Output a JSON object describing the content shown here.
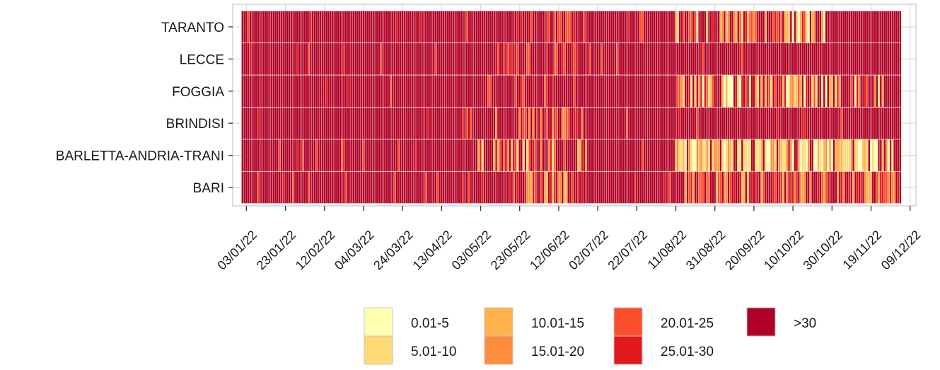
{
  "chart_data": {
    "type": "heatmap",
    "title": "",
    "xlabel": "",
    "ylabel": "",
    "x_start": "01/01/22",
    "x_end": "04/12/22",
    "xlim": [
      "27/12/21",
      "12/12/22"
    ],
    "x_tick_labels": [
      "03/01/22",
      "23/01/22",
      "12/02/22",
      "04/03/22",
      "24/03/22",
      "13/04/22",
      "03/05/22",
      "23/05/22",
      "12/06/22",
      "02/07/22",
      "22/07/22",
      "11/08/22",
      "31/08/22",
      "20/09/22",
      "10/10/22",
      "30/10/22",
      "19/11/22",
      "09/12/22"
    ],
    "rows": [
      "TARANTO",
      "LECCE",
      "FOGGIA",
      "BRINDISI",
      "BARLETTA-ANDRIA-TRANI",
      "BARI"
    ],
    "legend": {
      "placement": "bottom",
      "bins": [
        "0.01-5",
        "5.01-10",
        "10.01-15",
        "15.01-20",
        "20.01-25",
        "25.01-30",
        ">30"
      ],
      "colors": [
        "#FFFFB2",
        "#FED976",
        "#FEB24C",
        "#FD8D3C",
        "#FC4E2A",
        "#E31A1C",
        "#B10026"
      ]
    },
    "grid": true,
    "series": [
      {
        "name": "TARANTO",
        "segments": [
          {
            "from": "01/01/22",
            "to": "15/05/22",
            "pattern": "mostly >30"
          },
          {
            "from": "16/05/22",
            "to": "25/06/22",
            "pattern": "mixed >30 and 20.01-30"
          },
          {
            "from": "26/06/22",
            "to": "10/08/22",
            "pattern": "mostly >30"
          },
          {
            "from": "11/08/22",
            "to": "30/10/22",
            "pattern": "mixed 0.01-30"
          },
          {
            "from": "31/10/22",
            "to": "04/12/22",
            "pattern": "mostly >30"
          }
        ]
      },
      {
        "name": "LECCE",
        "segments": [
          {
            "from": "01/01/22",
            "to": "10/05/22",
            "pattern": "mostly >30"
          },
          {
            "from": "11/05/22",
            "to": "20/06/22",
            "pattern": "mixed >30 and 20.01-30"
          },
          {
            "from": "21/06/22",
            "to": "04/12/22",
            "pattern": "mostly >30"
          }
        ]
      },
      {
        "name": "FOGGIA",
        "segments": [
          {
            "from": "01/01/22",
            "to": "15/05/22",
            "pattern": "mostly >30"
          },
          {
            "from": "16/05/22",
            "to": "25/06/22",
            "pattern": "mixed >30 and 20.01-30"
          },
          {
            "from": "26/06/22",
            "to": "10/08/22",
            "pattern": "mostly >30"
          },
          {
            "from": "11/08/22",
            "to": "25/11/22",
            "pattern": "mixed 0.01-30"
          },
          {
            "from": "26/11/22",
            "to": "04/12/22",
            "pattern": "mostly >30"
          }
        ]
      },
      {
        "name": "BRINDISI",
        "segments": [
          {
            "from": "01/01/22",
            "to": "10/05/22",
            "pattern": "mostly >30"
          },
          {
            "from": "11/05/22",
            "to": "25/06/22",
            "pattern": "mixed >30 and 15.01-30"
          },
          {
            "from": "26/06/22",
            "to": "04/12/22",
            "pattern": "mostly >30"
          }
        ]
      },
      {
        "name": "BARLETTA-ANDRIA-TRANI",
        "segments": [
          {
            "from": "01/01/22",
            "to": "01/05/22",
            "pattern": "mostly >30"
          },
          {
            "from": "02/05/22",
            "to": "30/06/22",
            "pattern": "mixed >30 and 5.01-30"
          },
          {
            "from": "01/07/22",
            "to": "10/08/22",
            "pattern": "mostly >30"
          },
          {
            "from": "11/08/22",
            "to": "30/11/22",
            "pattern": "mostly 0.01-15"
          },
          {
            "from": "01/12/22",
            "to": "04/12/22",
            "pattern": "mostly >30"
          }
        ]
      },
      {
        "name": "BARI",
        "segments": [
          {
            "from": "01/01/22",
            "to": "15/05/22",
            "pattern": "mostly >30"
          },
          {
            "from": "16/05/22",
            "to": "25/06/22",
            "pattern": "mixed >30 and 10.01-30"
          },
          {
            "from": "26/06/22",
            "to": "10/08/22",
            "pattern": "mostly >30"
          },
          {
            "from": "11/08/22",
            "to": "04/12/22",
            "pattern": "mixed 10.01-30 and >30"
          }
        ]
      }
    ]
  }
}
